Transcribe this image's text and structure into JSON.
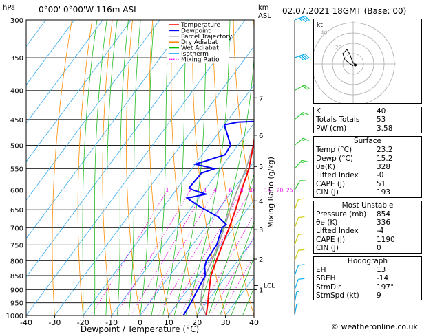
{
  "header": {
    "location": "0°00' 0°00'W 116m ASL",
    "hpa_unit": "hPa",
    "km_unit": "km",
    "asl_unit": "ASL",
    "datetime": "02.07.2021 18GMT (Base: 00)"
  },
  "chart_data": {
    "type": "skew-t log-p",
    "xlabel": "Dewpoint / Temperature (°C)",
    "ylabel": "hPa",
    "right_label": "Mixing Ratio (g/kg)",
    "x_ticks": [
      -40,
      -30,
      -20,
      -10,
      0,
      10,
      20,
      30,
      40
    ],
    "p_ticks": [
      300,
      350,
      400,
      450,
      500,
      550,
      600,
      650,
      700,
      750,
      800,
      850,
      900,
      950,
      1000
    ],
    "km_ticks": [
      {
        "label": "7",
        "p": 412
      },
      {
        "label": "6",
        "p": 480
      },
      {
        "label": "5",
        "p": 545
      },
      {
        "label": "4",
        "p": 627
      },
      {
        "label": "3",
        "p": 705
      },
      {
        "label": "2",
        "p": 795
      },
      {
        "label": "1",
        "p": 900
      }
    ],
    "lcl": {
      "label": "LCL",
      "p": 885
    },
    "mixing_ratio_labels": [
      "1",
      "2",
      "3",
      "4",
      "6",
      "8",
      "10",
      "15",
      "20",
      "25"
    ],
    "mixing_ratio_values": [
      1,
      2,
      3,
      4,
      6,
      8,
      10,
      15,
      20,
      25
    ],
    "legend": [
      {
        "name": "Temperature",
        "color": "#ff0000",
        "style": "solid"
      },
      {
        "name": "Dewpoint",
        "color": "#0000ff",
        "style": "solid"
      },
      {
        "name": "Parcel Trajectory",
        "color": "#a0a0a0",
        "style": "solid"
      },
      {
        "name": "Dry Adiabat",
        "color": "#ff8000",
        "style": "solid"
      },
      {
        "name": "Wet Adiabat",
        "color": "#00c000",
        "style": "solid"
      },
      {
        "name": "Isotherm",
        "color": "#00a0ff",
        "style": "solid"
      },
      {
        "name": "Mixing Ratio",
        "color": "#ff00ff",
        "style": "dotted"
      }
    ],
    "series": [
      {
        "name": "Temperature",
        "color": "#ff0000",
        "points": [
          [
            1000,
            23.2
          ],
          [
            950,
            20.5
          ],
          [
            925,
            19.0
          ],
          [
            900,
            17.5
          ],
          [
            850,
            14.5
          ],
          [
            800,
            12.5
          ],
          [
            750,
            10.5
          ],
          [
            700,
            8.5
          ],
          [
            650,
            6.0
          ],
          [
            600,
            3.0
          ],
          [
            550,
            0.0
          ],
          [
            500,
            -4.5
          ],
          [
            450,
            -10.0
          ],
          [
            400,
            -15.5
          ],
          [
            350,
            -22.5
          ],
          [
            300,
            -31.0
          ]
        ]
      },
      {
        "name": "Dewpoint",
        "color": "#0000ff",
        "points": [
          [
            1000,
            15.2
          ],
          [
            950,
            14.5
          ],
          [
            900,
            13.5
          ],
          [
            850,
            12.5
          ],
          [
            820,
            10.0
          ],
          [
            800,
            9.0
          ],
          [
            750,
            8.5
          ],
          [
            700,
            6.0
          ],
          [
            690,
            6.5
          ],
          [
            670,
            2.0
          ],
          [
            640,
            -8.0
          ],
          [
            620,
            -14.0
          ],
          [
            610,
            -8.5
          ],
          [
            600,
            -14.0
          ],
          [
            595,
            -16.0
          ],
          [
            560,
            -15.5
          ],
          [
            550,
            -12.0
          ],
          [
            540,
            -20.0
          ],
          [
            520,
            -12.0
          ],
          [
            500,
            -12.5
          ],
          [
            460,
            -20.0
          ],
          [
            455,
            -16.0
          ],
          [
            450,
            2.0
          ],
          [
            420,
            -1.0
          ],
          [
            400,
            -3.0
          ],
          [
            350,
            -12.0
          ],
          [
            320,
            -19.0
          ],
          [
            300,
            -24.0
          ]
        ]
      },
      {
        "name": "Parcel Trajectory",
        "color": "#a0a0a0",
        "points": [
          [
            1000,
            23.2
          ],
          [
            950,
            18.0
          ],
          [
            900,
            15.0
          ],
          [
            885,
            14.3
          ],
          [
            850,
            12.5
          ],
          [
            800,
            11.0
          ],
          [
            750,
            9.0
          ],
          [
            700,
            6.8
          ],
          [
            650,
            4.0
          ],
          [
            600,
            1.5
          ],
          [
            550,
            -1.0
          ],
          [
            500,
            -4.5
          ],
          [
            450,
            -9.5
          ],
          [
            400,
            -15.0
          ],
          [
            350,
            -22.0
          ],
          [
            300,
            -30.5
          ]
        ]
      }
    ],
    "wind_barbs": [
      {
        "p": 300,
        "dir": 250,
        "speed_kt": 35
      },
      {
        "p": 350,
        "dir": 250,
        "speed_kt": 40
      },
      {
        "p": 400,
        "dir": 240,
        "speed_kt": 20
      },
      {
        "p": 450,
        "dir": 230,
        "speed_kt": 15
      },
      {
        "p": 500,
        "dir": 230,
        "speed_kt": 15
      },
      {
        "p": 550,
        "dir": 220,
        "speed_kt": 15
      },
      {
        "p": 600,
        "dir": 210,
        "speed_kt": 10
      },
      {
        "p": 650,
        "dir": 200,
        "speed_kt": 10
      },
      {
        "p": 700,
        "dir": 200,
        "speed_kt": 10
      },
      {
        "p": 750,
        "dir": 200,
        "speed_kt": 10
      },
      {
        "p": 800,
        "dir": 200,
        "speed_kt": 10
      },
      {
        "p": 850,
        "dir": 200,
        "speed_kt": 10
      },
      {
        "p": 900,
        "dir": 200,
        "speed_kt": 10
      },
      {
        "p": 950,
        "dir": 190,
        "speed_kt": 5
      },
      {
        "p": 1000,
        "dir": 190,
        "speed_kt": 5
      }
    ]
  },
  "hodograph": {
    "unit_label": "kt",
    "ring_labels": [
      "20",
      "40"
    ],
    "trace": [
      [
        0,
        -2
      ],
      [
        -4,
        1
      ],
      [
        -8,
        4
      ],
      [
        -10,
        10
      ],
      [
        -6,
        14
      ],
      [
        -3,
        9
      ],
      [
        -1,
        3
      ],
      [
        1,
        0
      ]
    ],
    "storm_motion": [
      2,
      -1
    ]
  },
  "indices": {
    "rows": [
      {
        "label": "K",
        "value": "40"
      },
      {
        "label": "Totals Totals",
        "value": "53"
      },
      {
        "label": "PW (cm)",
        "value": "3.58"
      }
    ]
  },
  "surface": {
    "title": "Surface",
    "rows": [
      {
        "label": "Temp (°C)",
        "value": "23.2"
      },
      {
        "label": "Dewp (°C)",
        "value": "15.2"
      },
      {
        "label": "θe(K)",
        "value": "328"
      },
      {
        "label": "Lifted Index",
        "value": "-0"
      },
      {
        "label": "CAPE (J)",
        "value": "51"
      },
      {
        "label": "CIN (J)",
        "value": "193"
      }
    ]
  },
  "most_unstable": {
    "title": "Most Unstable",
    "rows": [
      {
        "label": "Pressure (mb)",
        "value": "854"
      },
      {
        "label": "θe (K)",
        "value": "336"
      },
      {
        "label": "Lifted Index",
        "value": "-4"
      },
      {
        "label": "CAPE (J)",
        "value": "1190"
      },
      {
        "label": "CIN (J)",
        "value": "0"
      }
    ]
  },
  "hodograph_table": {
    "title": "Hodograph",
    "rows": [
      {
        "label": "EH",
        "value": "13"
      },
      {
        "label": "SREH",
        "value": "-14"
      },
      {
        "label": "StmDir",
        "value": "197°"
      },
      {
        "label": "StmSpd (kt)",
        "value": "9"
      }
    ]
  },
  "footer": "© weatheronline.co.uk"
}
